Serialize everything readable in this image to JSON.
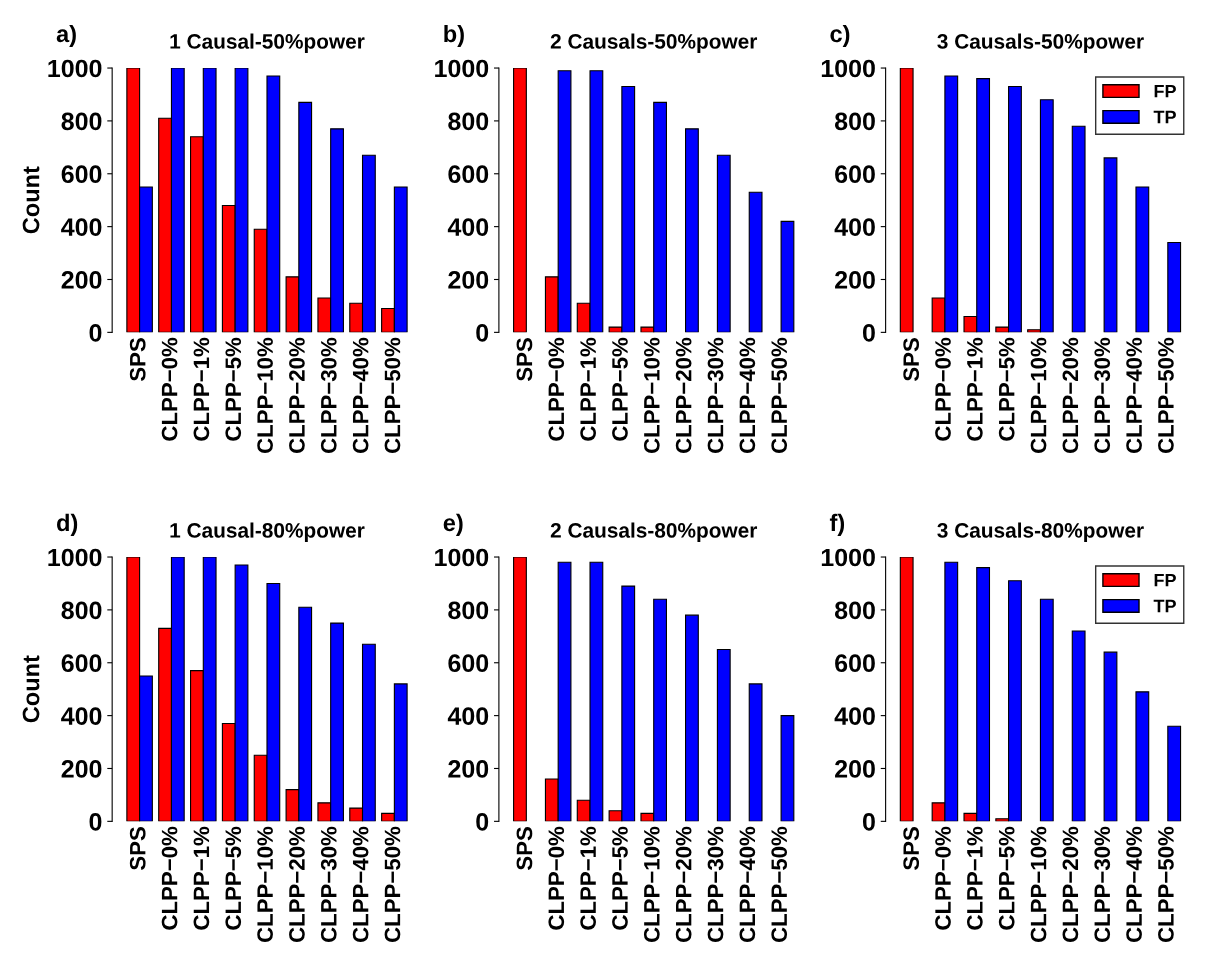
{
  "chart_data": [
    {
      "type": "bar",
      "title": "1 Causal-50%power",
      "ylabel": "Count",
      "annotations": [
        "a)"
      ],
      "categories": [
        "SPS",
        "CLPP−0%",
        "CLPP−1%",
        "CLPP−5%",
        "CLPP−10%",
        "CLPP−20%",
        "CLPP−30%",
        "CLPP−40%",
        "CLPP−50%"
      ],
      "series": [
        {
          "color": "#ff0000",
          "values": [
            1000,
            810,
            740,
            480,
            390,
            210,
            130,
            110,
            90
          ]
        },
        {
          "color": "#0000ff",
          "values": [
            550,
            1000,
            1000,
            1000,
            970,
            870,
            770,
            670,
            550
          ]
        }
      ],
      "ylim": [
        0,
        1000
      ],
      "yticks": [
        0,
        200,
        400,
        600,
        800,
        1000
      ],
      "grid": false,
      "legend": false
    },
    {
      "type": "bar",
      "title": "2 Causals-50%power",
      "annotations": [
        "b)"
      ],
      "categories": [
        "SPS",
        "CLPP−0%",
        "CLPP−1%",
        "CLPP−5%",
        "CLPP−10%",
        "CLPP−20%",
        "CLPP−30%",
        "CLPP−40%",
        "CLPP−50%"
      ],
      "series": [
        {
          "color": "#ff0000",
          "values": [
            1000,
            210,
            110,
            20,
            20,
            0,
            0,
            0,
            0
          ]
        },
        {
          "color": "#0000ff",
          "values": [
            0,
            990,
            990,
            930,
            870,
            770,
            670,
            530,
            420
          ]
        }
      ],
      "ylim": [
        0,
        1000
      ],
      "yticks": [
        0,
        200,
        400,
        600,
        800,
        1000
      ],
      "grid": false,
      "legend": false
    },
    {
      "type": "bar",
      "title": "3 Causals-50%power",
      "annotations": [
        "c)"
      ],
      "categories": [
        "SPS",
        "CLPP−0%",
        "CLPP−1%",
        "CLPP−5%",
        "CLPP−10%",
        "CLPP−20%",
        "CLPP−30%",
        "CLPP−40%",
        "CLPP−50%"
      ],
      "series": [
        {
          "name": "FP",
          "color": "#ff0000",
          "values": [
            1000,
            130,
            60,
            20,
            10,
            0,
            0,
            0,
            0
          ]
        },
        {
          "name": "TP",
          "color": "#0000ff",
          "values": [
            0,
            970,
            960,
            930,
            880,
            780,
            660,
            550,
            340
          ]
        }
      ],
      "ylim": [
        0,
        1000
      ],
      "yticks": [
        0,
        200,
        400,
        600,
        800,
        1000
      ],
      "grid": false,
      "legend": "top right"
    },
    {
      "type": "bar",
      "title": "1 Causal-80%power",
      "ylabel": "Count",
      "annotations": [
        "d)"
      ],
      "categories": [
        "SPS",
        "CLPP−0%",
        "CLPP−1%",
        "CLPP−5%",
        "CLPP−10%",
        "CLPP−20%",
        "CLPP−30%",
        "CLPP−40%",
        "CLPP−50%"
      ],
      "series": [
        {
          "color": "#ff0000",
          "values": [
            1000,
            730,
            570,
            370,
            250,
            120,
            70,
            50,
            30
          ]
        },
        {
          "color": "#0000ff",
          "values": [
            550,
            1000,
            1000,
            970,
            900,
            810,
            750,
            670,
            520
          ]
        }
      ],
      "ylim": [
        0,
        1000
      ],
      "yticks": [
        0,
        200,
        400,
        600,
        800,
        1000
      ],
      "grid": false,
      "legend": false
    },
    {
      "type": "bar",
      "title": "2 Causals-80%power",
      "annotations": [
        "e)"
      ],
      "categories": [
        "SPS",
        "CLPP−0%",
        "CLPP−1%",
        "CLPP−5%",
        "CLPP−10%",
        "CLPP−20%",
        "CLPP−30%",
        "CLPP−40%",
        "CLPP−50%"
      ],
      "series": [
        {
          "color": "#ff0000",
          "values": [
            1000,
            160,
            80,
            40,
            30,
            0,
            0,
            0,
            0
          ]
        },
        {
          "color": "#0000ff",
          "values": [
            0,
            980,
            980,
            890,
            840,
            780,
            650,
            520,
            400
          ]
        }
      ],
      "ylim": [
        0,
        1000
      ],
      "yticks": [
        0,
        200,
        400,
        600,
        800,
        1000
      ],
      "grid": false,
      "legend": false
    },
    {
      "type": "bar",
      "title": "3 Causals-80%power",
      "annotations": [
        "f)"
      ],
      "categories": [
        "SPS",
        "CLPP−0%",
        "CLPP−1%",
        "CLPP−5%",
        "CLPP−10%",
        "CLPP−20%",
        "CLPP−30%",
        "CLPP−40%",
        "CLPP−50%"
      ],
      "series": [
        {
          "name": "FP",
          "color": "#ff0000",
          "values": [
            1000,
            70,
            30,
            10,
            0,
            0,
            0,
            0,
            0
          ]
        },
        {
          "name": "TP",
          "color": "#0000ff",
          "values": [
            0,
            980,
            960,
            910,
            840,
            720,
            640,
            490,
            360
          ]
        }
      ],
      "ylim": [
        0,
        1000
      ],
      "yticks": [
        0,
        200,
        400,
        600,
        800,
        1000
      ],
      "grid": false,
      "legend": "top right"
    }
  ]
}
